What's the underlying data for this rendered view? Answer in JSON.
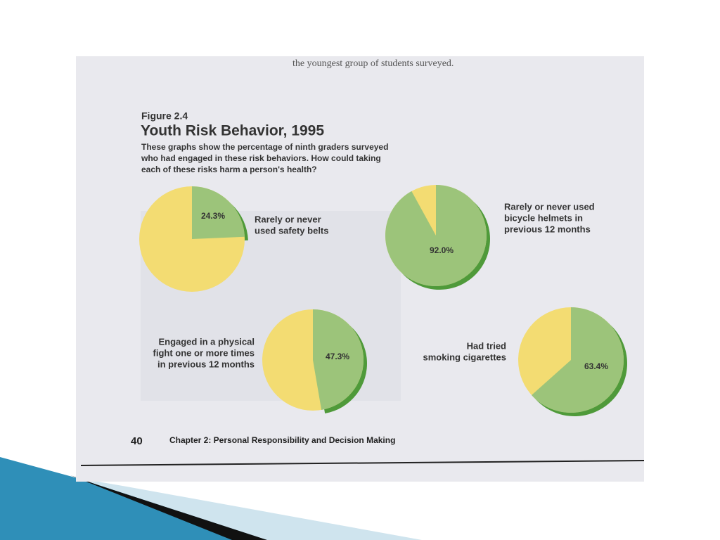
{
  "page": {
    "header_text": "the youngest group of students surveyed."
  },
  "figure": {
    "number": "Figure 2.4",
    "title": "Youth Risk Behavior, 1995",
    "caption": [
      "These graphs show the percentage of ninth graders surveyed",
      "who had engaged in these risk behaviors. How could taking",
      "each of these risks harm a person's health?"
    ]
  },
  "footer": {
    "page_number": "40",
    "chapter": "Chapter 2: Personal Responsibility and Decision Making"
  },
  "chart_data": [
    {
      "type": "pie",
      "annotation": [
        "Rarely or never",
        "used safety belts"
      ],
      "values": [
        24.3
      ],
      "value_labels": [
        "24.3%"
      ],
      "color": "#9cc47a"
    },
    {
      "type": "pie",
      "annotation": [
        "Rarely or never used",
        "bicycle helmets in",
        "previous 12 months"
      ],
      "values": [
        92.0
      ],
      "value_labels": [
        "92.0%"
      ],
      "color": "#9cc47a"
    },
    {
      "type": "pie",
      "annotation": [
        "Engaged in a physical",
        "fight one or more times",
        "in previous 12 months"
      ],
      "values": [
        47.3
      ],
      "value_labels": [
        "47.3%"
      ],
      "color": "#9cc47a"
    },
    {
      "type": "pie",
      "annotation": [
        "Had tried",
        "smoking cigarettes"
      ],
      "values": [
        63.4
      ],
      "value_labels": [
        "63.4%"
      ],
      "color": "#9cc47a"
    }
  ]
}
